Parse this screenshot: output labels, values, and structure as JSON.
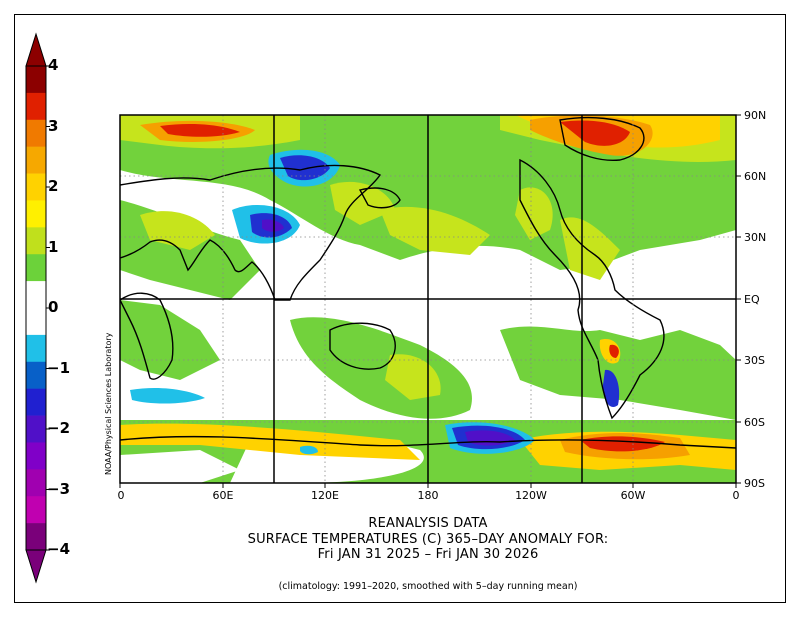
{
  "colorbar": {
    "ticks": [
      "4",
      "3",
      "2",
      "1",
      "0",
      "−1",
      "−2",
      "−3",
      "−4"
    ],
    "colors": [
      "#8c0000",
      "#e02000",
      "#f07a00",
      "#f6a800",
      "#ffd200",
      "#fff000",
      "#c0e01c",
      "#6cd23a",
      "#ffffff",
      "#ffffff",
      "#20c0e8",
      "#0860c8",
      "#2020d0",
      "#5010c8",
      "#8000c8",
      "#a000b0",
      "#c000b0",
      "#7a007a"
    ]
  },
  "map": {
    "lat_labels": [
      "90N",
      "60N",
      "30N",
      "EQ",
      "30S",
      "60S",
      "90S"
    ],
    "lon_labels": [
      "0",
      "60E",
      "120E",
      "180",
      "120W",
      "60W",
      "0"
    ],
    "credit": "NOAA/Physical Sciences Laboratory",
    "colors": {
      "land_anomaly_base": "#72d23c",
      "warm_light": "#c6e41c",
      "warm_yellow": "#ffd200",
      "warm_orange": "#f6a000",
      "warm_red": "#e02000",
      "cold_cyan": "#20c0e8",
      "cold_blue": "#2030d0",
      "cold_purple": "#5010c8"
    }
  },
  "title": {
    "line1": "REANALYSIS DATA",
    "line2": "SURFACE TEMPERATURES (C)   365–DAY ANOMALY FOR:",
    "line3": "Fri JAN 31 2025 – Fri JAN 30 2026"
  },
  "footnote": "(climatology: 1991–2020, smoothed with 5–day running mean)"
}
